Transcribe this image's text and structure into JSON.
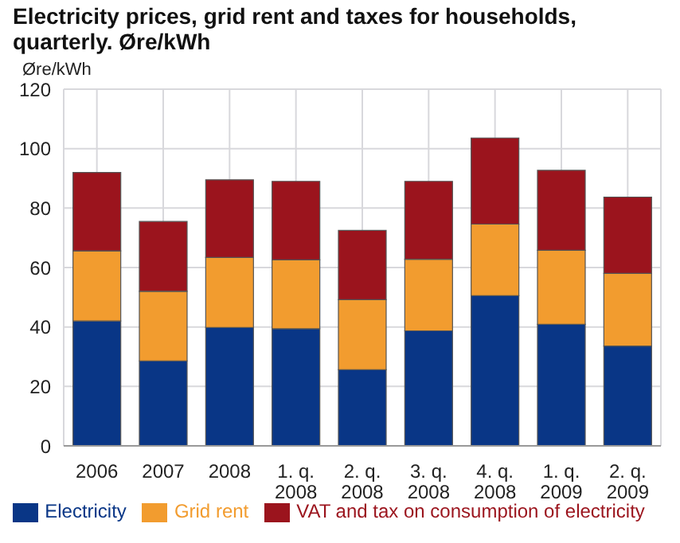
{
  "chart_data": {
    "type": "bar",
    "title": "Electricity prices, grid rent and taxes for households, quarterly. Øre/kWh",
    "ylabel": "Øre/kWh",
    "categories": [
      "2006",
      "2007",
      "2008",
      "1. q. 2008",
      "2. q. 2008",
      "3. q. 2008",
      "4. q. 2008",
      "1. q. 2009",
      "2. q. 2009"
    ],
    "series": [
      {
        "name": "Electricity",
        "color": "#093686",
        "values": [
          42,
          28.6,
          39.8,
          39.4,
          25.6,
          38.7,
          50.5,
          40.9,
          33.6
        ]
      },
      {
        "name": "Grid rent",
        "color": "#f29c2f",
        "values": [
          23.6,
          23.4,
          23.6,
          23.2,
          23.6,
          24.1,
          24.1,
          24.9,
          24.4
        ]
      },
      {
        "name": "VAT and tax on consumption of electricity",
        "color": "#9b141d",
        "values": [
          26.4,
          23.5,
          26.1,
          26.4,
          23.3,
          26.2,
          29,
          26.9,
          25.7
        ]
      }
    ],
    "stacked": true,
    "ylim": [
      0,
      120
    ],
    "yticks": [
      0,
      20,
      40,
      60,
      80,
      100,
      120
    ],
    "grid": true,
    "legend": "bottom"
  }
}
